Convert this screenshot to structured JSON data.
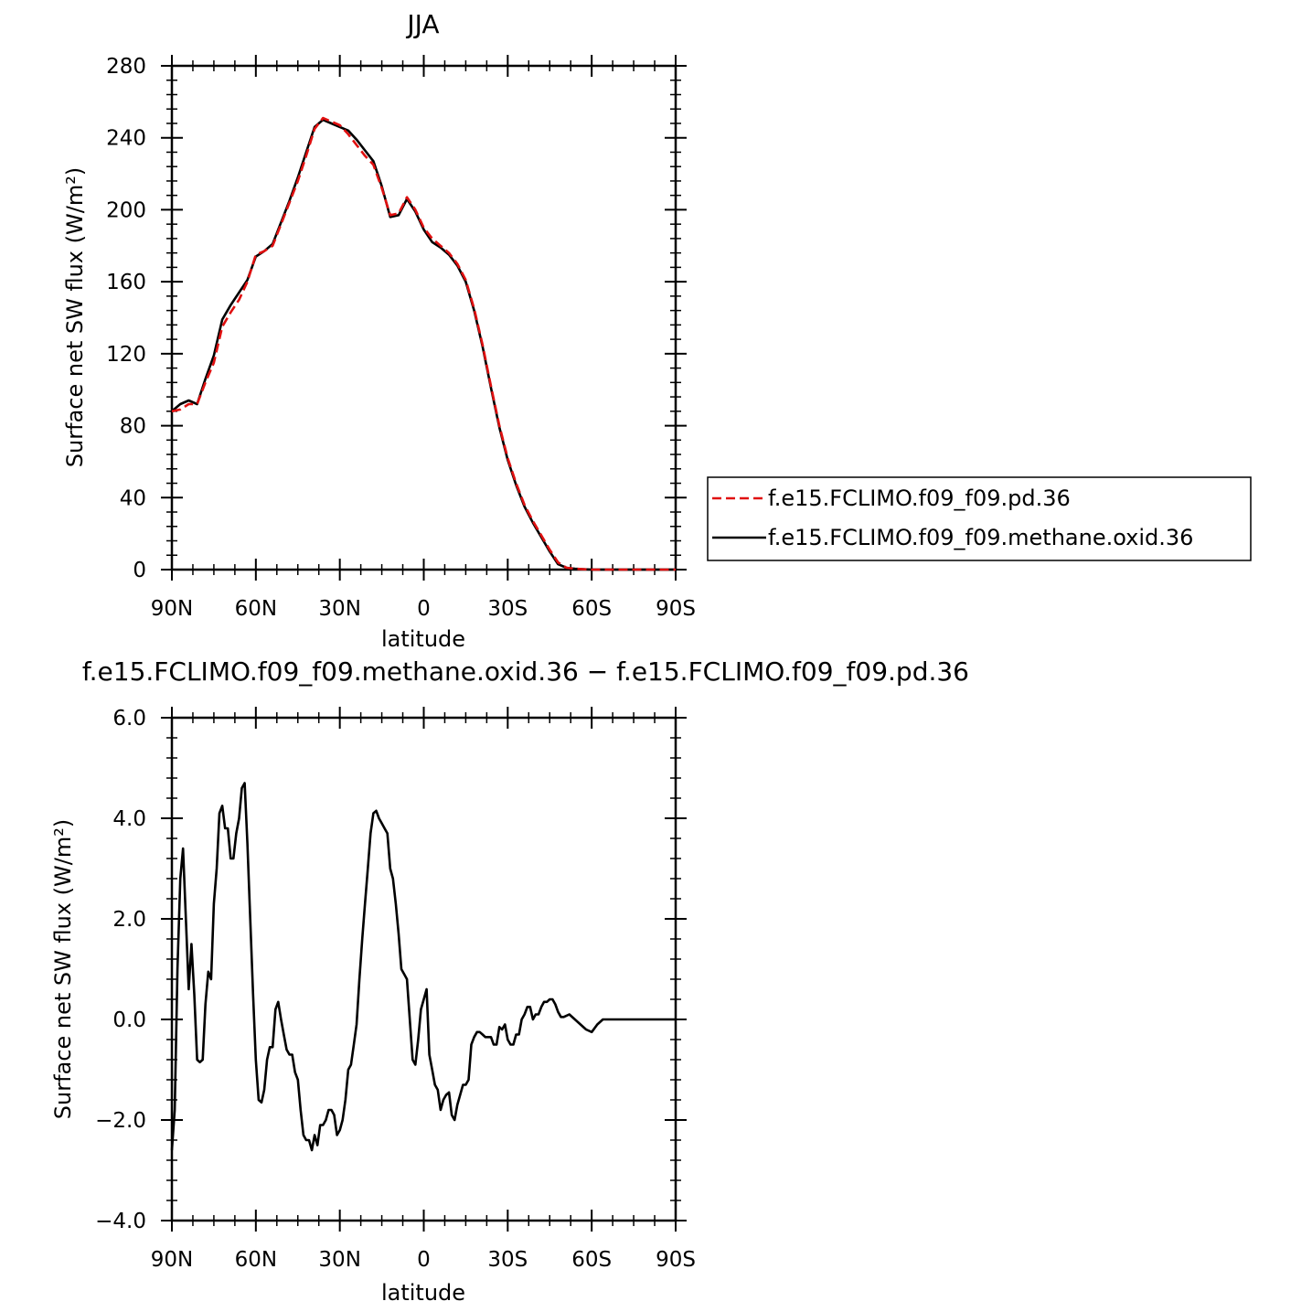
{
  "chart_data": [
    {
      "type": "line",
      "title": "JJA",
      "xlabel": "latitude",
      "ylabel": "Surface net SW flux (W/m²)",
      "xlim": [
        90,
        -90
      ],
      "ylim": [
        0,
        280
      ],
      "xticks": [
        90,
        60,
        30,
        0,
        -30,
        -60,
        -90
      ],
      "xtick_labels": [
        "90N",
        "60N",
        "30N",
        "0",
        "30S",
        "60S",
        "90S"
      ],
      "yticks": [
        0,
        40,
        80,
        120,
        160,
        200,
        240,
        280
      ],
      "ytick_labels": [
        "0",
        "40",
        "80",
        "120",
        "160",
        "200",
        "240",
        "280"
      ],
      "legend_position": "right",
      "series": [
        {
          "name": "f.e15.FCLIMO.f09_f09.pd.36",
          "color": "#e01010",
          "style": "dashed",
          "x": [
            90,
            87,
            84,
            81,
            78,
            75,
            72,
            69,
            66,
            63,
            60,
            57,
            54,
            51,
            48,
            45,
            42,
            39,
            36,
            33,
            30,
            27,
            24,
            21,
            18,
            15,
            12,
            9,
            6,
            3,
            0,
            -3,
            -6,
            -9,
            -12,
            -15,
            -18,
            -21,
            -24,
            -27,
            -30,
            -33,
            -36,
            -39,
            -42,
            -45,
            -48,
            -51,
            -54,
            -57,
            -60,
            -63,
            -66,
            -69,
            -72,
            -75,
            -78,
            -81,
            -84,
            -87,
            -90
          ],
          "y": [
            88,
            89,
            92,
            92,
            104,
            115,
            135,
            143,
            150,
            160,
            175,
            177,
            180,
            192,
            204,
            216,
            230,
            245,
            251,
            249,
            247,
            242,
            236,
            230,
            225,
            212,
            197,
            198,
            207,
            200,
            190,
            184,
            180,
            176,
            170,
            161,
            145,
            125,
            102,
            80,
            62,
            48,
            36,
            27,
            19,
            11,
            4,
            1,
            0.5,
            0.2,
            0,
            0,
            0,
            0,
            0,
            0,
            0,
            0,
            0,
            0,
            0
          ]
        },
        {
          "name": "f.e15.FCLIMO.f09_f09.methane.oxid.36",
          "color": "#000000",
          "style": "solid",
          "x": [
            90,
            87,
            84,
            81,
            78,
            75,
            72,
            69,
            66,
            63,
            60,
            57,
            54,
            51,
            48,
            45,
            42,
            39,
            36,
            33,
            30,
            27,
            24,
            21,
            18,
            15,
            12,
            9,
            6,
            3,
            0,
            -3,
            -6,
            -9,
            -12,
            -15,
            -18,
            -21,
            -24,
            -27,
            -30,
            -33,
            -36,
            -39,
            -42,
            -45,
            -48,
            -51,
            -54,
            -57,
            -60,
            -63,
            -66,
            -69,
            -72,
            -75,
            -78,
            -81,
            -84,
            -87,
            -90
          ],
          "y": [
            88,
            92,
            94,
            92,
            106,
            119,
            139,
            147,
            154,
            161,
            174,
            177,
            181,
            193,
            205,
            218,
            232,
            246,
            250,
            248,
            246,
            244,
            239,
            233,
            227,
            213,
            196,
            197,
            206,
            199,
            189,
            182,
            179,
            175,
            169,
            160,
            144,
            124,
            101,
            79,
            61,
            47,
            35,
            26,
            18,
            10,
            3,
            1,
            0.5,
            0.2,
            0,
            0,
            0,
            0,
            0,
            0,
            0,
            0,
            0,
            0,
            0
          ]
        }
      ]
    },
    {
      "type": "line",
      "title": "f.e15.FCLIMO.f09_f09.methane.oxid.36 − f.e15.FCLIMO.f09_f09.pd.36",
      "xlabel": "latitude",
      "ylabel": "Surface net SW flux (W/m²)",
      "xlim": [
        90,
        -90
      ],
      "ylim": [
        -4,
        6
      ],
      "xticks": [
        90,
        60,
        30,
        0,
        -30,
        -60,
        -90
      ],
      "xtick_labels": [
        "90N",
        "60N",
        "30N",
        "0",
        "30S",
        "60S",
        "90S"
      ],
      "yticks": [
        -4,
        -2,
        0,
        2,
        4,
        6
      ],
      "ytick_labels": [
        "−4.0",
        "−2.0",
        "0.0",
        "2.0",
        "4.0",
        "6.0"
      ],
      "series": [
        {
          "color": "#000000",
          "style": "solid",
          "x": [
            90,
            89,
            88,
            87,
            86,
            85,
            84,
            83,
            82,
            81,
            80,
            79,
            78,
            77,
            76,
            75,
            74,
            73,
            72,
            71,
            70,
            69,
            68,
            67,
            66,
            65,
            64,
            63,
            62,
            61,
            60,
            59,
            58,
            57,
            56,
            55,
            54,
            53,
            52,
            51,
            50,
            49,
            48,
            47,
            46,
            45,
            44,
            43,
            42,
            41,
            40,
            39,
            38,
            37,
            36,
            35,
            34,
            33,
            32,
            31,
            30,
            29,
            28,
            27,
            26,
            25,
            24,
            23,
            22,
            21,
            20,
            19,
            18,
            17,
            16,
            15,
            14,
            13,
            12,
            11,
            10,
            9,
            8,
            7,
            6,
            5,
            4,
            3,
            2,
            1,
            0,
            -1,
            -2,
            -3,
            -4,
            -5,
            -6,
            -7,
            -8,
            -9,
            -10,
            -11,
            -12,
            -13,
            -14,
            -15,
            -16,
            -17,
            -18,
            -19,
            -20,
            -21,
            -22,
            -23,
            -24,
            -25,
            -26,
            -27,
            -28,
            -29,
            -30,
            -31,
            -32,
            -33,
            -34,
            -35,
            -36,
            -37,
            -38,
            -39,
            -40,
            -41,
            -42,
            -43,
            -44,
            -45,
            -46,
            -47,
            -48,
            -49,
            -50,
            -52,
            -54,
            -56,
            -58,
            -60,
            -62,
            -64,
            -66,
            -68,
            -70,
            -75,
            -80,
            -85,
            -90
          ],
          "y": [
            -2.6,
            -1.8,
            1.0,
            2.8,
            3.4,
            2.0,
            0.6,
            1.5,
            0.5,
            -0.8,
            -0.85,
            -0.8,
            0.3,
            0.95,
            0.8,
            2.3,
            3.0,
            4.1,
            4.25,
            3.8,
            3.8,
            3.2,
            3.2,
            3.7,
            4.0,
            4.6,
            4.7,
            3.5,
            2.0,
            0.5,
            -0.8,
            -1.6,
            -1.65,
            -1.4,
            -0.8,
            -0.55,
            -0.55,
            0.2,
            0.35,
            0.0,
            -0.3,
            -0.6,
            -0.7,
            -0.7,
            -1.05,
            -1.2,
            -1.8,
            -2.3,
            -2.4,
            -2.4,
            -2.6,
            -2.3,
            -2.5,
            -2.1,
            -2.1,
            -2.0,
            -1.8,
            -1.8,
            -1.9,
            -2.3,
            -2.2,
            -2.0,
            -1.6,
            -1.0,
            -0.9,
            -0.5,
            -0.1,
            0.8,
            1.6,
            2.3,
            3.0,
            3.7,
            4.1,
            4.15,
            4.0,
            3.9,
            3.8,
            3.7,
            3.0,
            2.8,
            2.3,
            1.7,
            1.0,
            0.9,
            0.8,
            0.0,
            -0.8,
            -0.9,
            -0.4,
            0.2,
            0.4,
            0.6,
            -0.7,
            -1.0,
            -1.3,
            -1.4,
            -1.8,
            -1.6,
            -1.5,
            -1.45,
            -1.9,
            -2.0,
            -1.7,
            -1.5,
            -1.3,
            -1.3,
            -1.2,
            -0.5,
            -0.35,
            -0.25,
            -0.25,
            -0.3,
            -0.35,
            -0.35,
            -0.35,
            -0.5,
            -0.5,
            -0.15,
            -0.2,
            -0.1,
            -0.4,
            -0.5,
            -0.5,
            -0.3,
            -0.3,
            0.0,
            0.1,
            0.25,
            0.25,
            0.0,
            0.1,
            0.1,
            0.25,
            0.35,
            0.35,
            0.4,
            0.4,
            0.3,
            0.15,
            0.05,
            0.05,
            0.1,
            0.0,
            -0.1,
            -0.2,
            -0.25,
            -0.1,
            0.0,
            0.0,
            0.0,
            0.0,
            0.0,
            0.0,
            0.0,
            0.0
          ]
        }
      ]
    }
  ]
}
